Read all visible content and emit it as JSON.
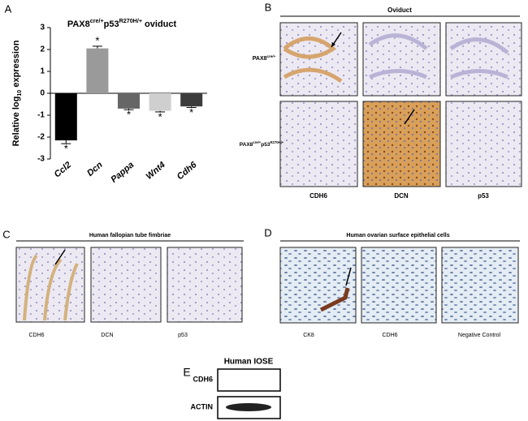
{
  "chart_data": {
    "type": "bar",
    "panel": "A",
    "title": [
      {
        "text": "PAX8"
      },
      {
        "text": "cre/+",
        "sup": true
      },
      {
        "text": "p53"
      },
      {
        "text": "R270H/+",
        "sup": true
      },
      {
        "text": " oviduct"
      }
    ],
    "y_label": [
      {
        "text": "Relative log"
      },
      {
        "text": "10",
        "sub": true
      },
      {
        "text": " expression"
      }
    ],
    "categories": [
      "Ccl2",
      "Dcn",
      "Pappa",
      "Wnt4",
      "Cdh6"
    ],
    "values": [
      -2.15,
      2.05,
      -0.7,
      -0.8,
      -0.6
    ],
    "errors": [
      0.15,
      0.1,
      0.05,
      0.05,
      0.05
    ],
    "annotations": [
      "*",
      "*",
      "*",
      "*",
      "*"
    ],
    "colors": [
      "#000000",
      "#9a9a9a",
      "#666666",
      "#cfcfcf",
      "#3c3c3c"
    ],
    "ylim": [
      -3,
      3
    ],
    "yticks": [
      -3,
      -2,
      -1,
      0,
      1,
      2,
      3
    ]
  },
  "panel_b": {
    "letter": "B",
    "title": "Oviduct",
    "rows": [
      [
        {
          "text": "PAX8"
        },
        {
          "text": "cre/+",
          "sup": true
        }
      ],
      [
        {
          "text": "PAX8"
        },
        {
          "text": "cre/+",
          "sup": true
        },
        {
          "text": "p53"
        },
        {
          "text": "R270H/+",
          "sup": true
        }
      ]
    ],
    "columns": [
      "CDH6",
      "DCN",
      "p53"
    ]
  },
  "panel_c": {
    "letter": "C",
    "title": "Human fallopian tube fimbriae",
    "columns": [
      "CDH6",
      "DCN",
      "p53"
    ]
  },
  "panel_d": {
    "letter": "D",
    "title": "Human ovarian surface epithelial cells",
    "columns": [
      "CK8",
      "CDH6",
      "Negative Control"
    ]
  },
  "panel_e": {
    "letter": "E",
    "title": "Human IOSE",
    "rows": [
      "CDH6",
      "ACTIN"
    ]
  }
}
